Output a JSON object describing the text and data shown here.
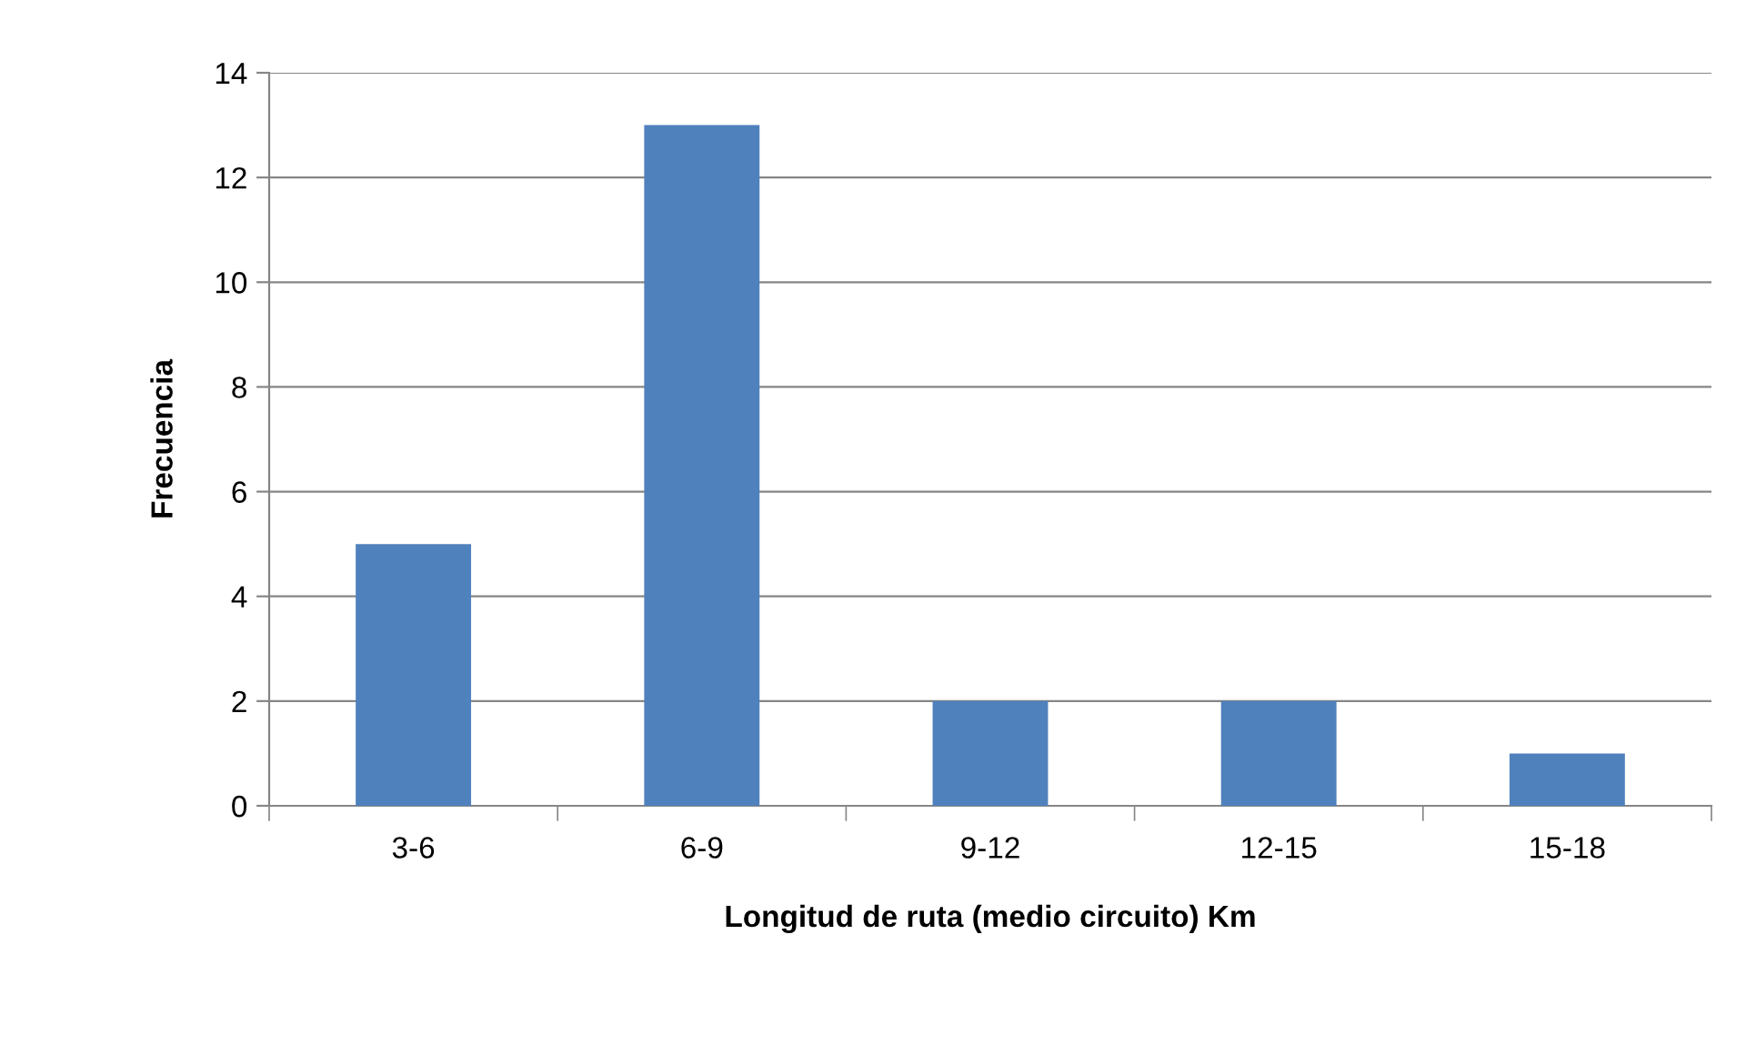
{
  "chart_data": {
    "type": "bar",
    "xlabel": "Longitud de ruta (medio circuito) Km",
    "ylabel": "Frecuencia",
    "categories": [
      "3-6",
      "6-9",
      "9-12",
      "12-15",
      "15-18"
    ],
    "values": [
      5,
      13,
      2,
      2,
      1
    ],
    "color": "#4f81bd",
    "ylim": [
      0,
      14
    ],
    "yticks": [
      0,
      2,
      4,
      6,
      8,
      10,
      12,
      14
    ],
    "grid": "y",
    "legend": false
  }
}
